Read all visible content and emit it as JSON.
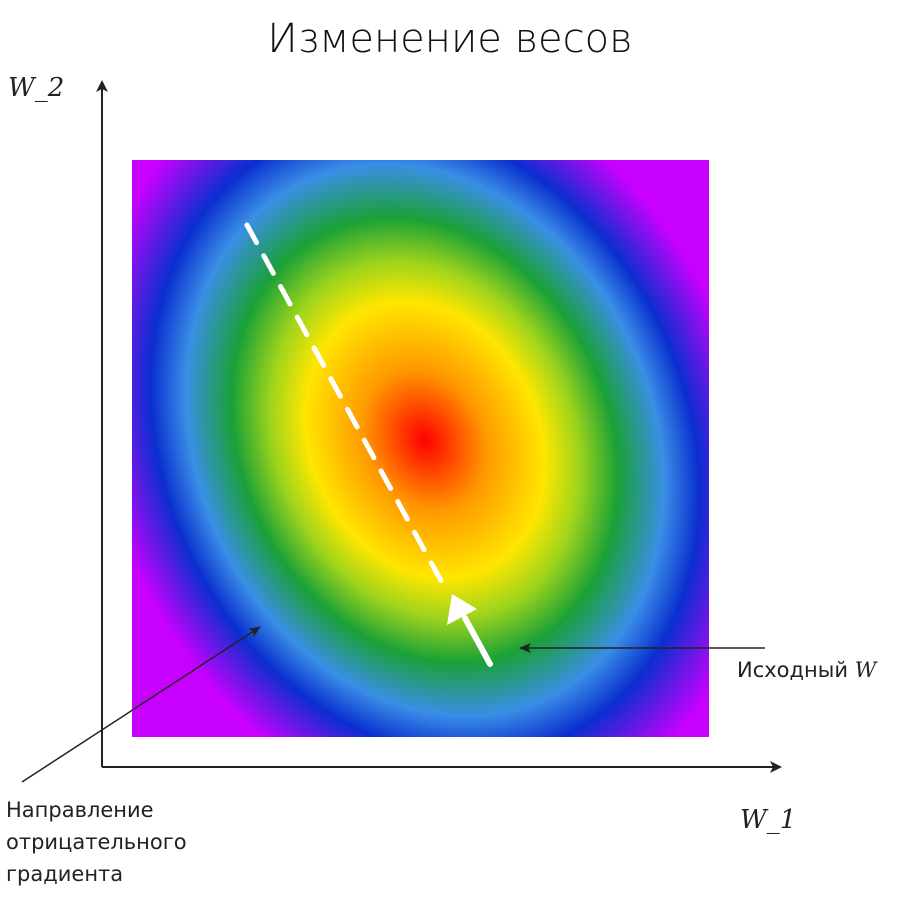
{
  "title": "Изменение весов",
  "axes": {
    "x_label": "W_1",
    "y_label": "W_2"
  },
  "annotations": {
    "initial_w_prefix": "Исходный ",
    "initial_w_symbol": "W",
    "gradient_direction_lines": [
      "Направление",
      "отрицательного",
      "градиента"
    ]
  },
  "heatmap": {
    "colors": [
      "#ff0000",
      "#ff9900",
      "#ffe600",
      "#9fd41c",
      "#1aa137",
      "#3a8ee6",
      "#0a2fcf",
      "#c800ff"
    ]
  },
  "colors": {
    "axis": "#222222",
    "path": "#ffffff"
  }
}
